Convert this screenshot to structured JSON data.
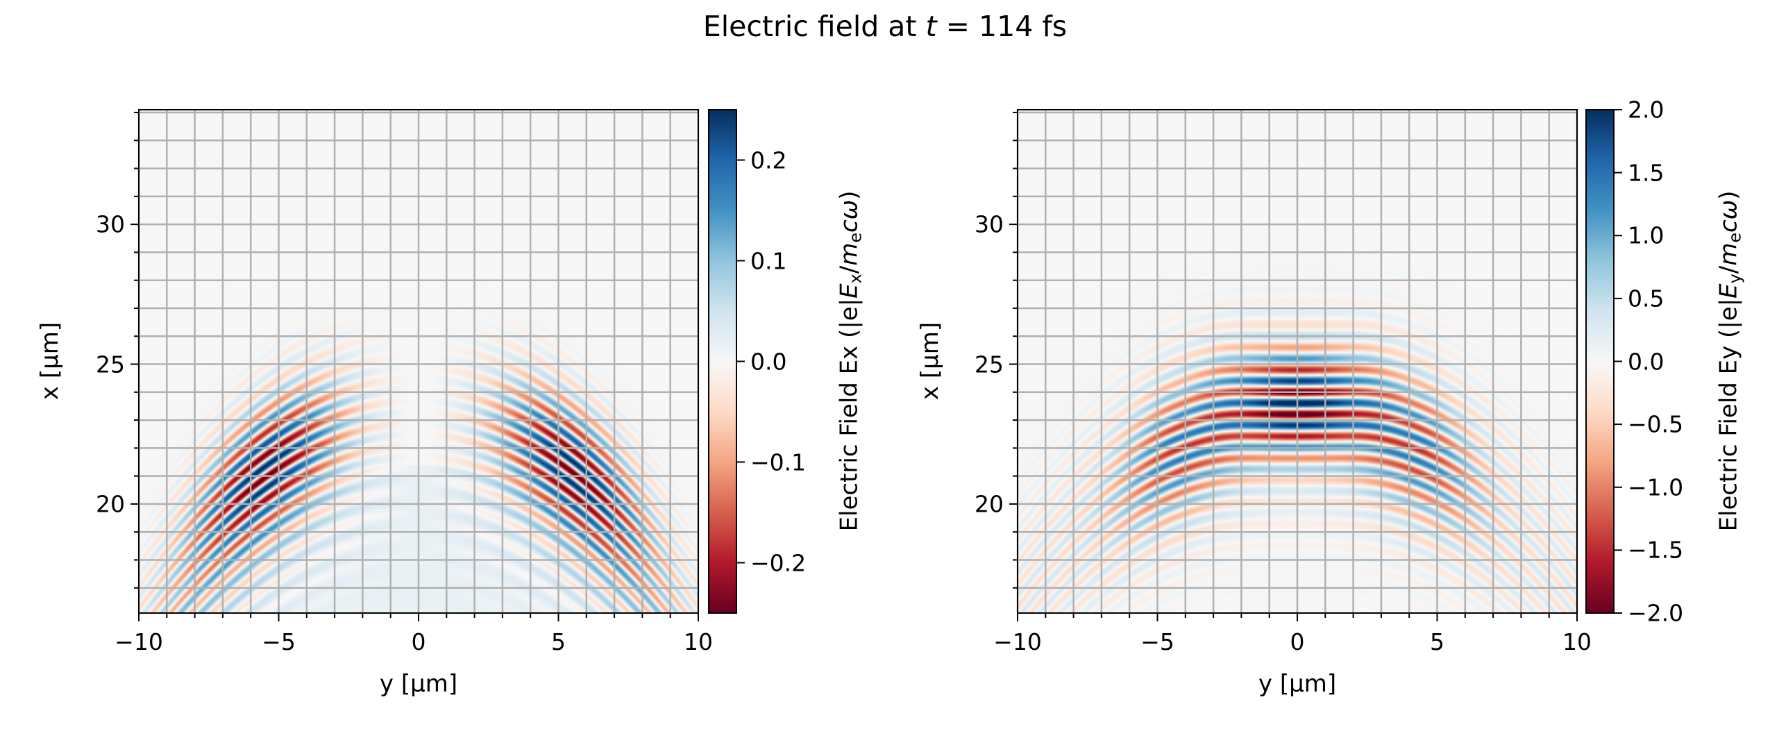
{
  "title": {
    "prefix": "Electric field at ",
    "var": "t",
    "suffix": " = 114 fs"
  },
  "chart_data": [
    {
      "type": "heatmap",
      "field": "Ex",
      "colormap": "RdBu_r",
      "xlabel": "y [µm]",
      "ylabel": "x [µm]",
      "xlim": [
        -10,
        10
      ],
      "ylim": [
        16.1,
        34.1
      ],
      "xticks": [
        {
          "v": -10,
          "label": "−10"
        },
        {
          "v": -5,
          "label": "−5"
        },
        {
          "v": 0,
          "label": "0"
        },
        {
          "v": 5,
          "label": "5"
        },
        {
          "v": 10,
          "label": "10"
        }
      ],
      "yticks": [
        {
          "v": 20,
          "label": "20"
        },
        {
          "v": 25,
          "label": "25"
        },
        {
          "v": 30,
          "label": "30"
        }
      ],
      "grid": true,
      "colorbar": {
        "range": [
          -0.25,
          0.25
        ],
        "ticks": [
          {
            "v": 0.2,
            "label": "0.2"
          },
          {
            "v": 0.1,
            "label": "0.1"
          },
          {
            "v": 0.0,
            "label": "0.0"
          },
          {
            "v": -0.1,
            "label": "−0.1"
          },
          {
            "v": -0.2,
            "label": "−0.2"
          }
        ],
        "label": {
          "prefix": "Electric Field Ex (|e|",
          "E": "E",
          "Esub": "x",
          "slash": "/",
          "m": "m",
          "msub": "e",
          "cw": "cω",
          "suffix": ")"
        }
      },
      "field_peak_y": [
        -5.5,
        5.5
      ],
      "field_peak_x": 23.2
    },
    {
      "type": "heatmap",
      "field": "Ey",
      "colormap": "RdBu_r",
      "xlabel": "y [µm]",
      "ylabel": "x [µm]",
      "xlim": [
        -10,
        10
      ],
      "ylim": [
        16.1,
        34.1
      ],
      "xticks": [
        {
          "v": -10,
          "label": "−10"
        },
        {
          "v": -5,
          "label": "−5"
        },
        {
          "v": 0,
          "label": "0"
        },
        {
          "v": 5,
          "label": "5"
        },
        {
          "v": 10,
          "label": "10"
        }
      ],
      "yticks": [
        {
          "v": 20,
          "label": "20"
        },
        {
          "v": 25,
          "label": "25"
        },
        {
          "v": 30,
          "label": "30"
        }
      ],
      "grid": true,
      "colorbar": {
        "range": [
          -2.0,
          2.0
        ],
        "ticks": [
          {
            "v": 2.0,
            "label": "2.0"
          },
          {
            "v": 1.5,
            "label": "1.5"
          },
          {
            "v": 1.0,
            "label": "1.0"
          },
          {
            "v": 0.5,
            "label": "0.5"
          },
          {
            "v": 0.0,
            "label": "0.0"
          },
          {
            "v": -0.5,
            "label": "−0.5"
          },
          {
            "v": -1.0,
            "label": "−1.0"
          },
          {
            "v": -1.5,
            "label": "−1.5"
          },
          {
            "v": -2.0,
            "label": "−2.0"
          }
        ],
        "label": {
          "prefix": "Electric Field Ey (|e|",
          "E": "E",
          "Esub": "y",
          "slash": "/",
          "m": "m",
          "msub": "e",
          "cw": "cω",
          "suffix": ")"
        }
      },
      "field_peak_y": [
        0
      ],
      "field_peak_x": 23.6
    }
  ],
  "colors": {
    "colormap_stops": [
      "#67001f",
      "#b2182b",
      "#d6604d",
      "#f4a582",
      "#fddbc7",
      "#f7f7f7",
      "#d1e5f0",
      "#92c5de",
      "#4393c3",
      "#2166ac",
      "#053061"
    ],
    "grid": "#b0b0b0"
  }
}
